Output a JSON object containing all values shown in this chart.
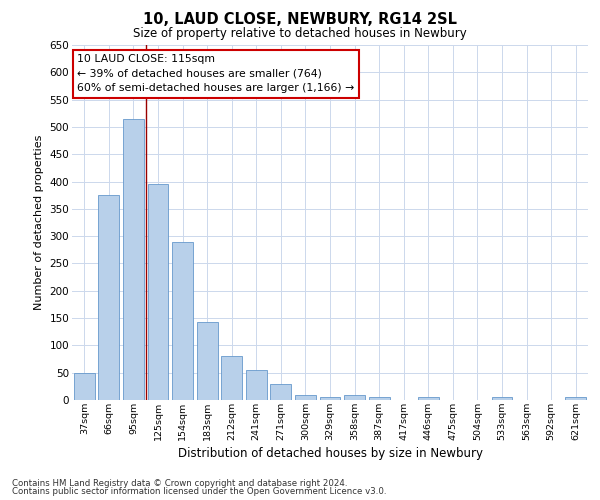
{
  "title": "10, LAUD CLOSE, NEWBURY, RG14 2SL",
  "subtitle": "Size of property relative to detached houses in Newbury",
  "xlabel": "Distribution of detached houses by size in Newbury",
  "ylabel": "Number of detached properties",
  "categories": [
    "37sqm",
    "66sqm",
    "95sqm",
    "125sqm",
    "154sqm",
    "183sqm",
    "212sqm",
    "241sqm",
    "271sqm",
    "300sqm",
    "329sqm",
    "358sqm",
    "387sqm",
    "417sqm",
    "446sqm",
    "475sqm",
    "504sqm",
    "533sqm",
    "563sqm",
    "592sqm",
    "621sqm"
  ],
  "values": [
    50,
    375,
    515,
    395,
    290,
    143,
    80,
    55,
    30,
    10,
    5,
    10,
    5,
    0,
    5,
    0,
    0,
    5,
    0,
    0,
    5
  ],
  "bar_color": "#b8d0ea",
  "bar_edgecolor": "#6699cc",
  "vline_color": "#990000",
  "vline_x": 2.5,
  "ylim": [
    0,
    650
  ],
  "yticks": [
    0,
    50,
    100,
    150,
    200,
    250,
    300,
    350,
    400,
    450,
    500,
    550,
    600,
    650
  ],
  "grid_color": "#ccd8ec",
  "annotation_text": "10 LAUD CLOSE: 115sqm\n← 39% of detached houses are smaller (764)\n60% of semi-detached houses are larger (1,166) →",
  "annotation_box_color": "#ffffff",
  "annotation_box_edgecolor": "#cc0000",
  "footer_line1": "Contains HM Land Registry data © Crown copyright and database right 2024.",
  "footer_line2": "Contains public sector information licensed under the Open Government Licence v3.0.",
  "background_color": "#ffffff",
  "fig_width": 6.0,
  "fig_height": 5.0
}
